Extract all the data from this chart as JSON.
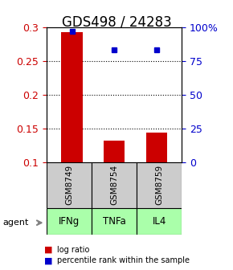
{
  "title": "GDS498 / 24283",
  "categories": [
    "IFNg",
    "TNFa",
    "IL4"
  ],
  "sample_labels": [
    "GSM8749",
    "GSM8754",
    "GSM8759"
  ],
  "bar_values": [
    0.292,
    0.132,
    0.144
  ],
  "percentile_values": [
    97,
    83,
    83
  ],
  "bar_color": "#cc0000",
  "percentile_color": "#0000cc",
  "ylim_left": [
    0.1,
    0.3
  ],
  "ylim_right": [
    0,
    100
  ],
  "yticks_left": [
    0.1,
    0.15,
    0.2,
    0.25,
    0.3
  ],
  "yticks_right": [
    0,
    25,
    50,
    75,
    100
  ],
  "ytick_labels_right": [
    "0",
    "25",
    "50",
    "75",
    "100%"
  ],
  "bar_width": 0.5,
  "sample_box_color": "#cccccc",
  "agent_box_color": "#aaffaa",
  "background_color": "#ffffff",
  "title_fontsize": 12,
  "tick_fontsize": 9,
  "label_fontsize": 9
}
